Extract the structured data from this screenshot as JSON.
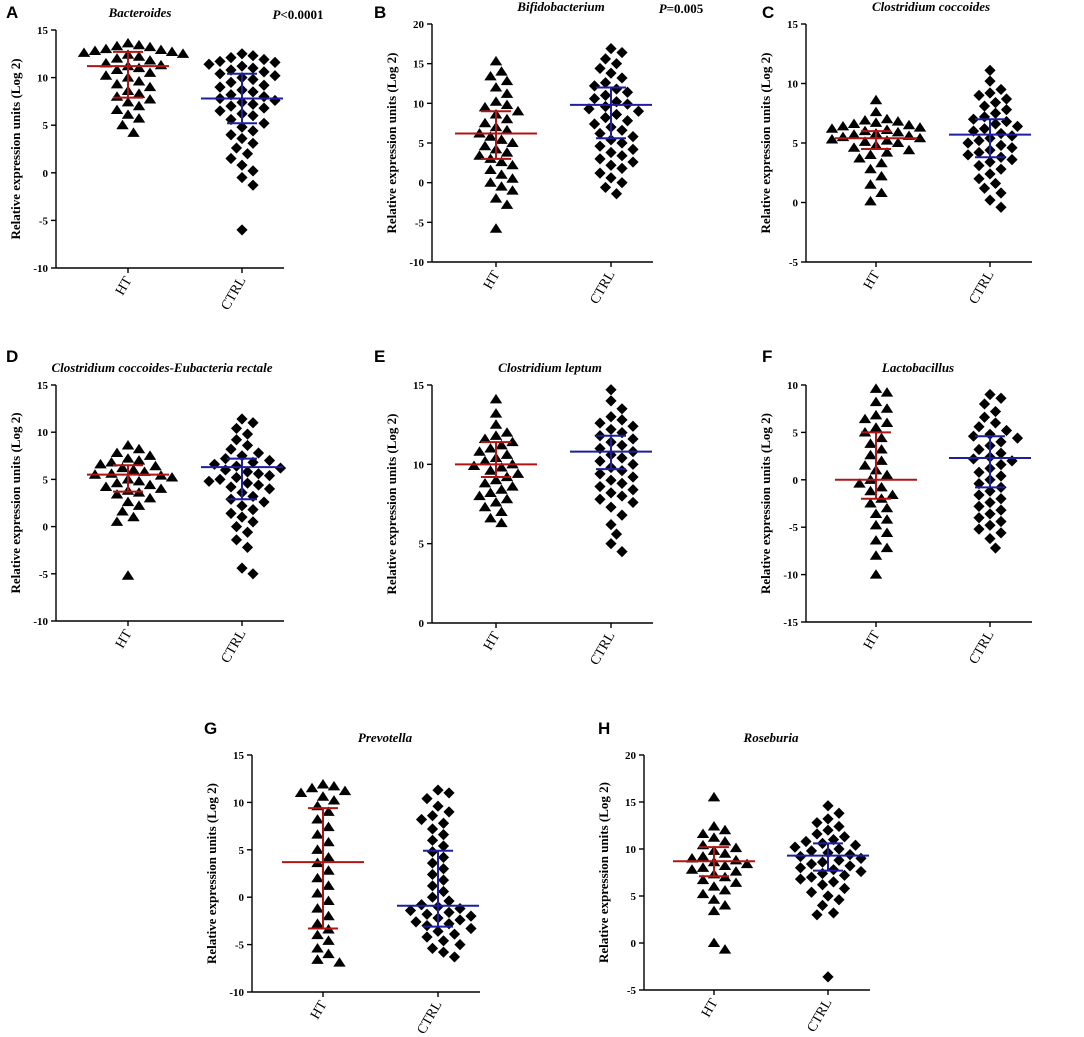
{
  "figure": {
    "ylabel": "Relative expression units (Log 2)",
    "categories": [
      "HT",
      "CTRL"
    ],
    "colors": {
      "ht_bar": "#b01515",
      "ctrl_bar": "#1f1f9e",
      "marker": "#000000"
    },
    "markers": {
      "HT": "triangle",
      "CTRL": "diamond"
    }
  },
  "chart_data": [
    {
      "type": "scatter",
      "panel": "A",
      "title": "Bacteroides",
      "pvalue": {
        "p": "P",
        "rest": "<0.0001"
      },
      "yticks": [
        15,
        10,
        5,
        0,
        -5,
        -10
      ],
      "ylim": [
        -10,
        15
      ],
      "series": [
        {
          "name": "HT",
          "median": 11.2,
          "iqr": [
            7.9,
            12.7
          ],
          "values": [
            13.6,
            13.4,
            13.3,
            13.2,
            13.0,
            12.9,
            12.8,
            12.7,
            12.6,
            12.5,
            12.4,
            12.2,
            12.0,
            11.8,
            11.5,
            11.3,
            11.2,
            11.0,
            10.8,
            10.5,
            10.2,
            10.0,
            9.6,
            9.3,
            9.0,
            8.6,
            8.3,
            8.0,
            7.7,
            7.4,
            7.0,
            6.6,
            6.1,
            5.7,
            5.0,
            4.2
          ]
        },
        {
          "name": "CTRL",
          "median": 7.8,
          "iqr": [
            5.2,
            10.4
          ],
          "values": [
            12.5,
            12.3,
            12.1,
            11.9,
            11.7,
            11.6,
            11.4,
            11.2,
            11.0,
            10.8,
            10.6,
            10.4,
            10.2,
            10.0,
            9.8,
            9.5,
            9.2,
            9.0,
            8.7,
            8.5,
            8.2,
            8.0,
            7.8,
            7.6,
            7.4,
            7.2,
            7.0,
            6.8,
            6.5,
            6.2,
            6.0,
            5.6,
            5.2,
            4.8,
            4.4,
            4.0,
            3.6,
            3.1,
            2.6,
            2.0,
            1.5,
            0.8,
            0.2,
            -0.5,
            -1.3,
            -6.0
          ]
        }
      ]
    },
    {
      "type": "scatter",
      "panel": "B",
      "title": "Bifidobacterium",
      "pvalue": {
        "p": "P",
        "rest": "=0.005"
      },
      "yticks": [
        20,
        15,
        10,
        5,
        0,
        -5,
        -10
      ],
      "ylim": [
        -10,
        20
      ],
      "series": [
        {
          "name": "HT",
          "median": 6.2,
          "iqr": [
            3.0,
            9.0
          ],
          "values": [
            15.3,
            14.0,
            13.4,
            12.8,
            12.0,
            11.2,
            10.2,
            9.8,
            9.5,
            9.0,
            8.6,
            8.0,
            7.5,
            7.0,
            6.6,
            6.2,
            5.8,
            5.4,
            5.0,
            4.6,
            4.2,
            3.8,
            3.4,
            3.0,
            2.6,
            2.2,
            1.6,
            1.0,
            0.5,
            0.0,
            -0.5,
            -1.0,
            -2.0,
            -2.8,
            -5.8
          ]
        },
        {
          "name": "CTRL",
          "median": 9.8,
          "iqr": [
            5.6,
            12.0
          ],
          "values": [
            16.9,
            16.4,
            15.6,
            15.0,
            14.4,
            13.8,
            13.2,
            12.6,
            12.2,
            11.8,
            11.4,
            11.0,
            10.6,
            10.2,
            9.9,
            9.6,
            9.3,
            9.0,
            8.6,
            8.2,
            7.8,
            7.4,
            7.0,
            6.6,
            6.2,
            5.8,
            5.4,
            5.0,
            4.6,
            4.2,
            3.8,
            3.4,
            3.0,
            2.6,
            2.2,
            1.8,
            1.2,
            0.6,
            0.0,
            -0.6,
            -1.4
          ]
        }
      ]
    },
    {
      "type": "scatter",
      "panel": "C",
      "title": "Clostridium coccoides",
      "pvalue": null,
      "yticks": [
        15,
        10,
        5,
        0,
        -5
      ],
      "ylim": [
        -5,
        15
      ],
      "series": [
        {
          "name": "HT",
          "median": 5.4,
          "iqr": [
            4.5,
            6.0
          ],
          "values": [
            8.6,
            7.6,
            7.0,
            6.9,
            6.8,
            6.7,
            6.6,
            6.5,
            6.4,
            6.3,
            6.2,
            6.1,
            6.0,
            5.9,
            5.8,
            5.7,
            5.6,
            5.5,
            5.4,
            5.3,
            5.2,
            5.1,
            5.0,
            4.8,
            4.6,
            4.4,
            4.2,
            4.0,
            3.7,
            3.3,
            2.8,
            2.2,
            1.5,
            0.8,
            0.1
          ]
        },
        {
          "name": "CTRL",
          "median": 5.7,
          "iqr": [
            3.8,
            7.0
          ],
          "values": [
            11.1,
            10.2,
            9.5,
            9.2,
            9.0,
            8.7,
            8.4,
            8.1,
            7.8,
            7.5,
            7.2,
            7.0,
            6.8,
            6.6,
            6.4,
            6.2,
            6.0,
            5.8,
            5.6,
            5.4,
            5.2,
            5.0,
            4.8,
            4.6,
            4.4,
            4.2,
            4.0,
            3.8,
            3.6,
            3.4,
            3.1,
            2.8,
            2.4,
            2.0,
            1.6,
            1.2,
            0.8,
            0.2,
            -0.4
          ]
        }
      ]
    },
    {
      "type": "scatter",
      "panel": "D",
      "title": "Clostridium coccoides-Eubacteria rectale",
      "pvalue": null,
      "yticks": [
        15,
        10,
        5,
        0,
        -5,
        -10
      ],
      "ylim": [
        -10,
        15
      ],
      "series": [
        {
          "name": "HT",
          "median": 5.5,
          "iqr": [
            3.7,
            6.5
          ],
          "values": [
            8.6,
            8.2,
            7.8,
            7.5,
            7.2,
            7.0,
            6.8,
            6.6,
            6.4,
            6.2,
            6.0,
            5.8,
            5.6,
            5.5,
            5.4,
            5.2,
            5.0,
            4.8,
            4.6,
            4.4,
            4.2,
            4.0,
            3.8,
            3.6,
            3.4,
            3.0,
            2.6,
            2.2,
            1.6,
            1.0,
            0.5,
            -5.2
          ]
        },
        {
          "name": "CTRL",
          "median": 6.3,
          "iqr": [
            2.9,
            7.2
          ],
          "values": [
            11.4,
            11.0,
            10.4,
            9.8,
            9.2,
            8.6,
            8.2,
            7.8,
            7.5,
            7.2,
            7.0,
            6.8,
            6.6,
            6.4,
            6.2,
            6.0,
            5.8,
            5.6,
            5.4,
            5.2,
            5.0,
            4.8,
            4.6,
            4.4,
            4.2,
            4.0,
            3.6,
            3.2,
            2.9,
            2.6,
            2.2,
            1.8,
            1.4,
            1.0,
            0.5,
            0.0,
            -0.6,
            -1.4,
            -2.2,
            -4.4,
            -5.0
          ]
        }
      ]
    },
    {
      "type": "scatter",
      "panel": "E",
      "title": "Clostridium leptum",
      "pvalue": null,
      "yticks": [
        15,
        10,
        5,
        0
      ],
      "ylim": [
        0,
        15
      ],
      "series": [
        {
          "name": "HT",
          "median": 10.0,
          "iqr": [
            9.2,
            11.4
          ],
          "values": [
            14.1,
            13.2,
            12.5,
            12.0,
            11.8,
            11.6,
            11.4,
            11.2,
            11.0,
            10.8,
            10.6,
            10.4,
            10.2,
            10.0,
            9.9,
            9.8,
            9.6,
            9.4,
            9.2,
            9.0,
            8.8,
            8.6,
            8.4,
            8.2,
            8.0,
            7.8,
            7.6,
            7.3,
            7.0,
            6.6,
            6.3
          ]
        },
        {
          "name": "CTRL",
          "median": 10.8,
          "iqr": [
            9.7,
            11.8
          ],
          "values": [
            14.7,
            14.0,
            13.5,
            13.0,
            12.8,
            12.6,
            12.4,
            12.2,
            12.0,
            11.8,
            11.6,
            11.4,
            11.2,
            11.0,
            10.8,
            10.6,
            10.4,
            10.2,
            10.0,
            9.8,
            9.6,
            9.4,
            9.2,
            9.0,
            8.8,
            8.6,
            8.4,
            8.2,
            8.0,
            7.8,
            7.6,
            7.3,
            6.8,
            6.2,
            5.6,
            5.0,
            4.5
          ]
        }
      ]
    },
    {
      "type": "scatter",
      "panel": "F",
      "title": "Lactobacillus",
      "pvalue": null,
      "yticks": [
        10,
        5,
        0,
        -5,
        -10,
        -15
      ],
      "ylim": [
        -15,
        10
      ],
      "series": [
        {
          "name": "HT",
          "median": 0.0,
          "iqr": [
            -2.0,
            5.0
          ],
          "values": [
            9.6,
            9.2,
            8.2,
            7.5,
            6.8,
            6.4,
            6.0,
            5.5,
            5.0,
            4.4,
            3.8,
            3.2,
            2.6,
            2.0,
            1.5,
            1.0,
            0.5,
            0.0,
            -0.4,
            -0.8,
            -1.2,
            -1.6,
            -2.0,
            -2.5,
            -3.0,
            -3.6,
            -4.2,
            -4.8,
            -5.6,
            -6.4,
            -7.2,
            -8.0,
            -10.0
          ]
        },
        {
          "name": "CTRL",
          "median": 2.3,
          "iqr": [
            -0.8,
            4.6
          ],
          "values": [
            9.0,
            8.6,
            8.0,
            7.2,
            6.6,
            6.0,
            5.6,
            5.2,
            4.8,
            4.6,
            4.4,
            4.0,
            3.6,
            3.2,
            2.8,
            2.4,
            2.2,
            2.0,
            1.6,
            1.2,
            0.8,
            0.4,
            0.0,
            -0.4,
            -0.8,
            -1.2,
            -1.6,
            -2.0,
            -2.4,
            -2.8,
            -3.2,
            -3.6,
            -4.0,
            -4.4,
            -4.8,
            -5.2,
            -5.6,
            -6.2,
            -7.2
          ]
        }
      ]
    },
    {
      "type": "scatter",
      "panel": "G",
      "title": "Prevotella",
      "pvalue": null,
      "yticks": [
        15,
        10,
        5,
        0,
        -5,
        -10
      ],
      "ylim": [
        -10,
        15
      ],
      "series": [
        {
          "name": "HT",
          "median": 3.7,
          "iqr": [
            -3.3,
            9.4
          ],
          "values": [
            11.9,
            11.7,
            11.5,
            11.2,
            11.0,
            10.6,
            10.2,
            9.6,
            9.0,
            8.2,
            7.4,
            6.6,
            5.8,
            5.0,
            4.2,
            3.6,
            2.8,
            2.0,
            1.2,
            0.4,
            -0.4,
            -1.2,
            -2.0,
            -2.8,
            -3.4,
            -4.0,
            -4.6,
            -5.4,
            -6.0,
            -6.6,
            -6.9
          ]
        },
        {
          "name": "CTRL",
          "median": -0.9,
          "iqr": [
            -3.1,
            4.9
          ],
          "values": [
            11.3,
            11.0,
            10.4,
            9.6,
            9.0,
            8.6,
            8.2,
            7.8,
            7.2,
            6.6,
            6.0,
            5.4,
            4.8,
            4.2,
            3.6,
            3.0,
            2.4,
            1.8,
            1.2,
            0.6,
            0.0,
            -0.4,
            -0.8,
            -1.0,
            -1.2,
            -1.4,
            -1.6,
            -1.8,
            -2.0,
            -2.2,
            -2.4,
            -2.6,
            -2.8,
            -3.0,
            -3.3,
            -3.6,
            -3.9,
            -4.2,
            -4.6,
            -5.0,
            -5.4,
            -5.8,
            -6.3
          ]
        }
      ]
    },
    {
      "type": "scatter",
      "panel": "H",
      "title": "Roseburia",
      "pvalue": null,
      "yticks": [
        20,
        15,
        10,
        5,
        0,
        -5
      ],
      "ylim": [
        -5,
        20
      ],
      "series": [
        {
          "name": "HT",
          "median": 8.7,
          "iqr": [
            7.1,
            10.2
          ],
          "values": [
            15.5,
            12.4,
            12.0,
            11.6,
            11.2,
            10.8,
            10.4,
            10.1,
            9.8,
            9.5,
            9.2,
            9.0,
            8.8,
            8.6,
            8.4,
            8.2,
            8.0,
            7.8,
            7.6,
            7.3,
            7.0,
            6.7,
            6.4,
            6.0,
            5.6,
            5.2,
            4.6,
            4.0,
            3.4,
            0.0,
            -0.7
          ]
        },
        {
          "name": "CTRL",
          "median": 9.3,
          "iqr": [
            7.7,
            10.6
          ],
          "values": [
            14.6,
            13.8,
            13.2,
            12.8,
            12.4,
            12.0,
            11.6,
            11.3,
            11.0,
            10.8,
            10.6,
            10.4,
            10.2,
            10.0,
            9.8,
            9.6,
            9.4,
            9.2,
            9.0,
            8.8,
            8.6,
            8.4,
            8.2,
            8.0,
            7.8,
            7.6,
            7.4,
            7.2,
            7.0,
            6.8,
            6.5,
            6.2,
            5.8,
            5.4,
            5.0,
            4.6,
            4.0,
            3.2,
            3.0,
            -3.6
          ]
        }
      ]
    }
  ]
}
